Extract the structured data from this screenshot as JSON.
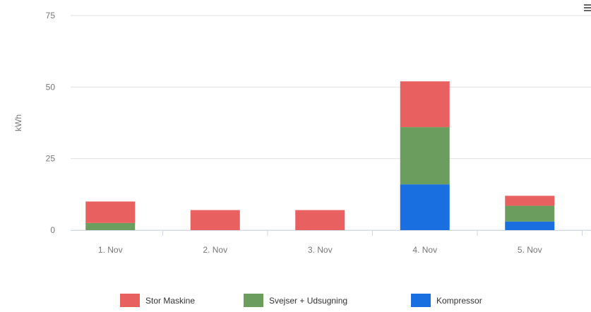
{
  "chart_data": {
    "type": "bar",
    "stacked": true,
    "categories": [
      "1. Nov",
      "2. Nov",
      "3. Nov",
      "4. Nov",
      "5. Nov"
    ],
    "series": [
      {
        "name": "Kompressor",
        "color": "#1a6fe0",
        "values": [
          0,
          0,
          0,
          16,
          3
        ]
      },
      {
        "name": "Svejser + Udsugning",
        "color": "#6b9e5e",
        "values": [
          2.5,
          0,
          0,
          20,
          5.5
        ]
      },
      {
        "name": "Stor Maskine",
        "color": "#e96060",
        "values": [
          7.5,
          7,
          7,
          16,
          3.5
        ]
      }
    ],
    "legend_order": [
      "Stor Maskine",
      "Svejser + Udsugning",
      "Kompressor"
    ],
    "legend_placement": "bottom",
    "title": "",
    "xlabel": "",
    "ylabel": "kWh",
    "ylim": [
      0,
      75
    ],
    "yticks": [
      0,
      25,
      50,
      75
    ],
    "grid": true
  },
  "menu": {
    "icon": "hamburger-menu-icon"
  }
}
